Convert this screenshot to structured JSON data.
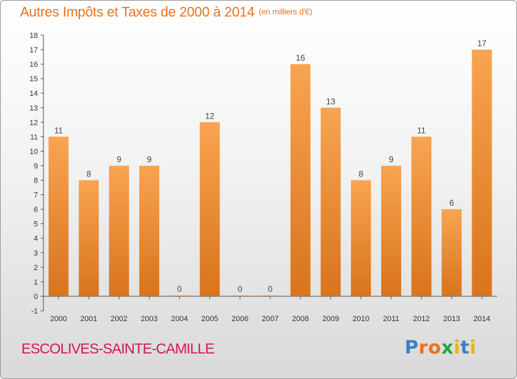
{
  "chart_data": {
    "type": "bar",
    "title": "Autres Impôts et Taxes de 2000 à 2014",
    "subtitle": "(en milliers d'€)",
    "xlabel": "",
    "ylabel": "",
    "categories": [
      "2000",
      "2001",
      "2002",
      "2003",
      "2004",
      "2005",
      "2006",
      "2007",
      "2008",
      "2009",
      "2010",
      "2011",
      "2012",
      "2013",
      "2014"
    ],
    "values": [
      11,
      8,
      9,
      9,
      0,
      12,
      0,
      0,
      16,
      13,
      8,
      9,
      11,
      6,
      17
    ],
    "ylim": [
      -1,
      18
    ],
    "yticks": [
      -1,
      0,
      1,
      2,
      3,
      4,
      5,
      6,
      7,
      8,
      9,
      10,
      11,
      12,
      13,
      14,
      15,
      16,
      17,
      18
    ],
    "grid": false,
    "legend": "none",
    "bar_color_top": "#f8a451",
    "bar_color_bottom": "#d8741c"
  },
  "location": "ESCOLIVES-SAINTE-CAMILLE",
  "logo": {
    "text": "Proxiti",
    "letters": [
      "P",
      "r",
      "o",
      "x",
      "i",
      "t",
      "i"
    ],
    "colors": [
      "#3b7fc4",
      "#e8731f",
      "#e8731f",
      "#2e9e3f",
      "#e5b800",
      "#3b7fc4",
      "#e5b800"
    ]
  },
  "colors": {
    "title": "#e8731f",
    "location": "#d4165b"
  }
}
